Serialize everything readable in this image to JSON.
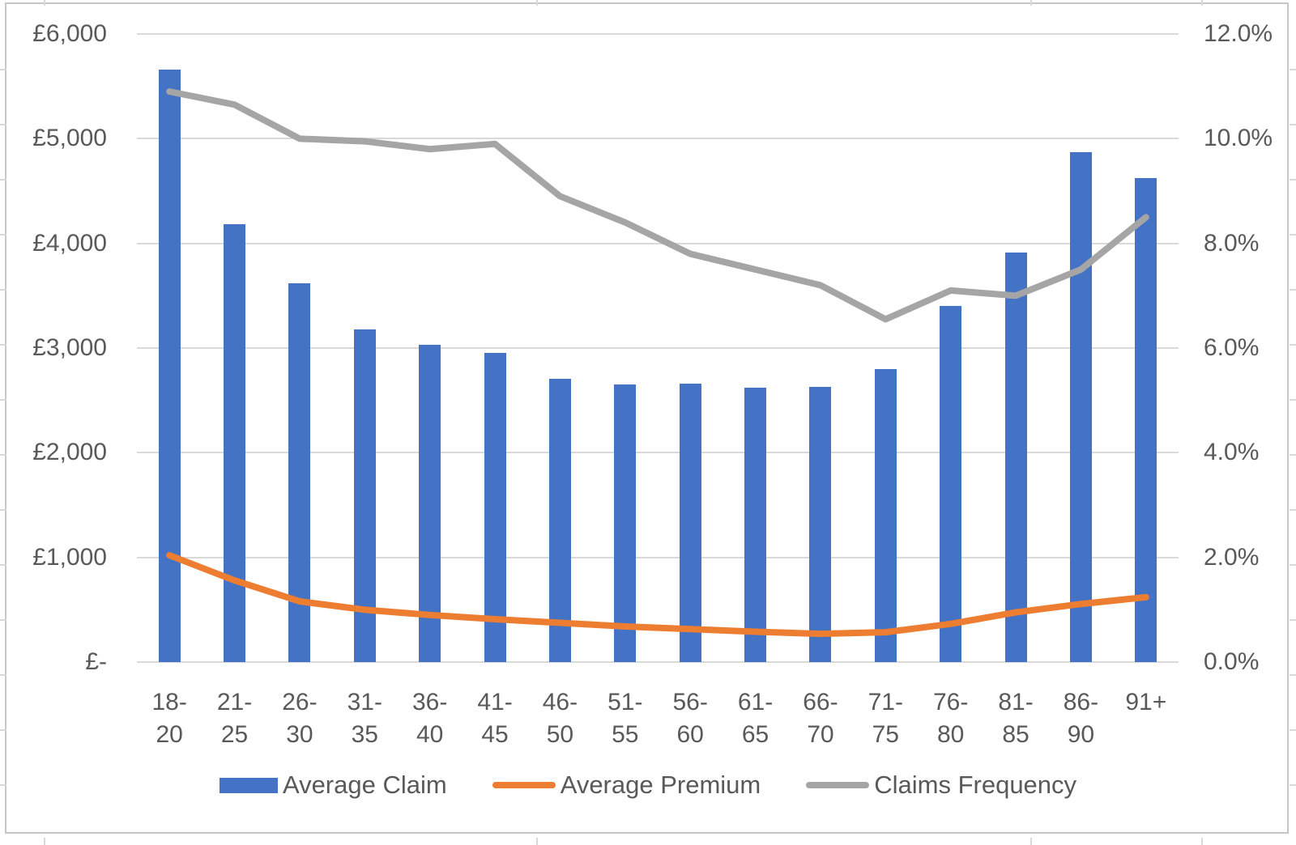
{
  "chart_data": {
    "type": "bar",
    "subtype": "combo-bar-line",
    "title": "",
    "categories": [
      "18-20",
      "21-25",
      "26-30",
      "31-35",
      "36-40",
      "41-45",
      "46-50",
      "51-55",
      "56-60",
      "61-65",
      "66-70",
      "71-75",
      "76-80",
      "81-85",
      "86-90",
      "91+"
    ],
    "category_labels": [
      [
        "18-",
        "20"
      ],
      [
        "21-",
        "25"
      ],
      [
        "26-",
        "30"
      ],
      [
        "31-",
        "35"
      ],
      [
        "36-",
        "40"
      ],
      [
        "41-",
        "45"
      ],
      [
        "46-",
        "50"
      ],
      [
        "51-",
        "55"
      ],
      [
        "56-",
        "60"
      ],
      [
        "61-",
        "65"
      ],
      [
        "66-",
        "70"
      ],
      [
        "71-",
        "75"
      ],
      [
        "76-",
        "80"
      ],
      [
        "81-",
        "85"
      ],
      [
        "86-",
        "90"
      ],
      [
        "91+"
      ]
    ],
    "series": [
      {
        "name": "Average Claim",
        "type": "bar",
        "axis": "left",
        "color": "#4472C4",
        "values": [
          5660,
          4180,
          3620,
          3180,
          3030,
          2950,
          2710,
          2650,
          2660,
          2620,
          2630,
          2800,
          3400,
          3910,
          4870,
          4620
        ]
      },
      {
        "name": "Average Premium",
        "type": "line",
        "axis": "left",
        "color": "#ED7D31",
        "values": [
          1020,
          780,
          580,
          500,
          450,
          410,
          375,
          340,
          315,
          290,
          270,
          285,
          365,
          475,
          555,
          620
        ]
      },
      {
        "name": "Claims Frequency",
        "type": "line",
        "axis": "right",
        "color": "#A5A5A5",
        "values": [
          10.9,
          10.65,
          10.0,
          9.95,
          9.8,
          9.9,
          8.9,
          8.4,
          7.8,
          7.5,
          7.2,
          6.55,
          7.1,
          7.0,
          7.5,
          8.5
        ]
      }
    ],
    "left_axis": {
      "ticks": [
        "£6,000",
        "£5,000",
        "£4,000",
        "£3,000",
        "£2,000",
        "£1,000",
        "£-"
      ],
      "min": 0,
      "max": 6000
    },
    "right_axis": {
      "ticks": [
        "12.0%",
        "10.0%",
        "8.0%",
        "6.0%",
        "4.0%",
        "2.0%",
        "0.0%"
      ],
      "min": 0,
      "max": 12
    },
    "legend_position": "bottom",
    "grid": true,
    "colors": {
      "bar": "#4472C4",
      "premium_line": "#ED7D31",
      "frequency_line": "#A5A5A5",
      "gridline": "#D9D9D9",
      "axis_text": "#595959",
      "frame": "#C6C6C6"
    }
  }
}
